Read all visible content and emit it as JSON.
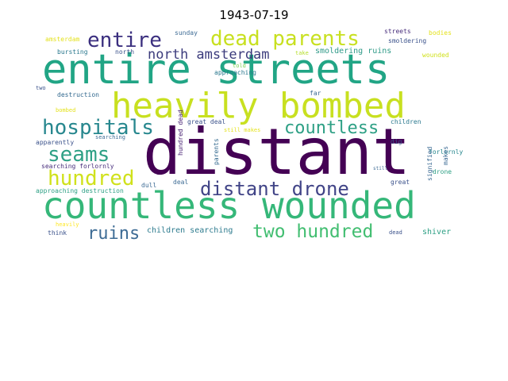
{
  "title": "1943-07-19",
  "words": [
    {
      "text": "entire streets",
      "color": "#21a585"
    },
    {
      "text": "distant",
      "color": "#440154"
    },
    {
      "text": "countless wounded",
      "color": "#35b779"
    },
    {
      "text": "heavily bombed",
      "color": "#c8e020"
    },
    {
      "text": "dead parents",
      "color": "#c8e020"
    },
    {
      "text": "entire",
      "color": "#3b2f7f"
    },
    {
      "text": "hospitals",
      "color": "#27878e"
    },
    {
      "text": "countless",
      "color": "#2ea085"
    },
    {
      "text": "seams",
      "color": "#2ea085"
    },
    {
      "text": "hundred",
      "color": "#d0e11c"
    },
    {
      "text": "distant drone",
      "color": "#414487"
    },
    {
      "text": "north amsterdam",
      "color": "#3b3b7c"
    },
    {
      "text": "two hundred",
      "color": "#42be71"
    },
    {
      "text": "ruins",
      "color": "#3e6c95"
    },
    {
      "text": "smoldering ruins",
      "color": "#2f9a88"
    },
    {
      "text": "children searching",
      "color": "#2d7b8e"
    },
    {
      "text": "shiver",
      "color": "#2ea085"
    },
    {
      "text": "amsterdam",
      "color": "#e4e21e"
    },
    {
      "text": "bursting",
      "color": "#2a788e"
    },
    {
      "text": "north",
      "color": "#3b528b"
    },
    {
      "text": "sunday",
      "color": "#3e6c95"
    },
    {
      "text": "streets",
      "color": "#472d7b"
    },
    {
      "text": "smoldering",
      "color": "#3b528b"
    },
    {
      "text": "bodies",
      "color": "#e4e21e"
    },
    {
      "text": "take",
      "color": "#b5de2b"
    },
    {
      "text": "wounded",
      "color": "#d0e11c"
    },
    {
      "text": "told",
      "color": "#7ad151"
    },
    {
      "text": "approaching",
      "color": "#2a788e"
    },
    {
      "text": "destruction",
      "color": "#31688e"
    },
    {
      "text": "far",
      "color": "#3e6c95"
    },
    {
      "text": "two",
      "color": "#3b528b"
    },
    {
      "text": "bombed",
      "color": "#e4e21e"
    },
    {
      "text": "apparently",
      "color": "#3b528b"
    },
    {
      "text": "searching",
      "color": "#3e6c95"
    },
    {
      "text": "searching forlornly",
      "color": "#472d7b"
    },
    {
      "text": "approaching destruction",
      "color": "#2ea085"
    },
    {
      "text": "heavily",
      "color": "#fde725"
    },
    {
      "text": "think",
      "color": "#3b528b"
    },
    {
      "text": "great deal",
      "color": "#3b528b"
    },
    {
      "text": "still makes",
      "color": "#e4e21e"
    },
    {
      "text": "hundred dead",
      "color": "#482173"
    },
    {
      "text": "parents",
      "color": "#31688e"
    },
    {
      "text": "dull",
      "color": "#3e6c95"
    },
    {
      "text": "deal",
      "color": "#3e6c95"
    },
    {
      "text": "children",
      "color": "#2a788e"
    },
    {
      "text": "forlornly",
      "color": "#27878e"
    },
    {
      "text": "dig",
      "color": "#3b528b"
    },
    {
      "text": "signified",
      "color": "#3e6c95"
    },
    {
      "text": "makes",
      "color": "#3e6c95"
    },
    {
      "text": "still",
      "color": "#3e6c95"
    },
    {
      "text": "drone",
      "color": "#2ea085"
    },
    {
      "text": "great",
      "color": "#3b528b"
    },
    {
      "text": "dead",
      "color": "#3b528b"
    }
  ]
}
